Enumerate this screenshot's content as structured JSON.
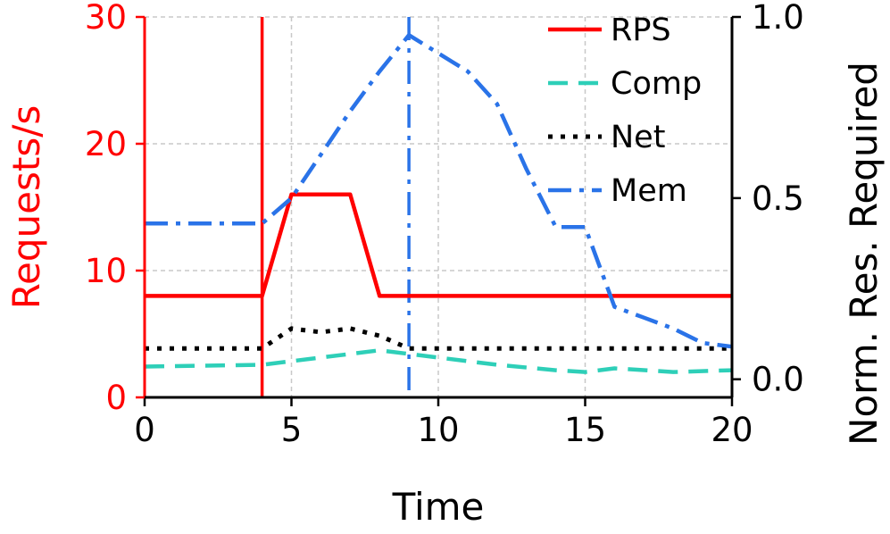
{
  "chart_data": {
    "type": "line",
    "xlabel": "Time",
    "ylabel_left": "Requests/s",
    "ylabel_right": "Norm. Res. Required",
    "xlim": [
      0,
      20
    ],
    "ylim_left": [
      0,
      30
    ],
    "ylim_right": [
      -0.05,
      1.0
    ],
    "xticks": [
      0,
      5,
      10,
      15,
      20
    ],
    "yticks_left": [
      0,
      10,
      20,
      30
    ],
    "yticks_right": [
      0.0,
      0.5,
      1.0
    ],
    "xtick_labels": [
      "0",
      "5",
      "10",
      "15",
      "20"
    ],
    "ytick_labels_left": [
      "0",
      "10",
      "20",
      "30"
    ],
    "ytick_labels_right": [
      "0.0",
      "0.5",
      "1.0"
    ],
    "grid": true,
    "legend_position": "top-right",
    "left_axis_color": "#ff0000",
    "series": [
      {
        "name": "RPS",
        "axis": "left",
        "color": "#ff0000",
        "style": "solid",
        "x": [
          0,
          4,
          5,
          7,
          8,
          20
        ],
        "y": [
          8,
          8,
          16,
          16,
          8,
          8
        ]
      },
      {
        "name": "Comp",
        "axis": "right",
        "color": "#2ecfb8",
        "style": "dashed",
        "x": [
          0,
          4,
          6,
          8,
          10,
          12,
          14,
          15,
          16,
          18,
          20
        ],
        "y": [
          0.035,
          0.04,
          0.06,
          0.08,
          0.06,
          0.04,
          0.025,
          0.02,
          0.03,
          0.02,
          0.025
        ]
      },
      {
        "name": "Net",
        "axis": "right",
        "color": "#000000",
        "style": "dotted",
        "x": [
          0,
          4,
          5,
          6,
          7,
          8,
          9,
          10,
          20
        ],
        "y": [
          0.085,
          0.085,
          0.14,
          0.13,
          0.14,
          0.12,
          0.085,
          0.085,
          0.085
        ]
      },
      {
        "name": "Mem",
        "axis": "right",
        "color": "#2a73e8",
        "style": "dashdot",
        "x": [
          0,
          4,
          5,
          6,
          7,
          8,
          9,
          10,
          11,
          12,
          13,
          14,
          15,
          16,
          17,
          18,
          19,
          20
        ],
        "y": [
          0.43,
          0.43,
          0.5,
          0.62,
          0.74,
          0.85,
          0.95,
          0.9,
          0.85,
          0.76,
          0.58,
          0.42,
          0.42,
          0.2,
          0.17,
          0.14,
          0.1,
          0.09
        ]
      }
    ],
    "vlines": [
      {
        "x": 4,
        "color": "#ff0000",
        "style": "solid"
      },
      {
        "x": 9,
        "color": "#2a73e8",
        "style": "dashdot"
      }
    ]
  }
}
